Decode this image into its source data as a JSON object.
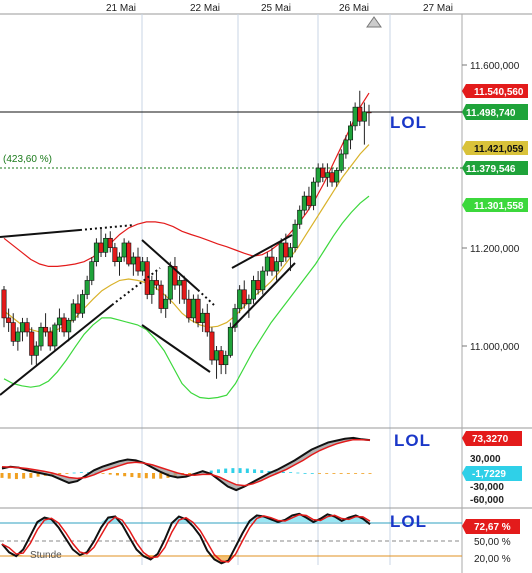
{
  "chart_data": [
    {
      "type": "candlestick",
      "x_labels": [
        "21 Mai",
        "22 Mai",
        "25 Mai",
        "26 Mai",
        "27 Mai"
      ],
      "y_ticks": [
        "11.600,000",
        "11.200,000",
        "11.000,000"
      ],
      "ylim": [
        10920,
        11680
      ],
      "price_badges": [
        {
          "label": "11.540,560",
          "value": 11540.56,
          "color": "#e31b1b",
          "text_color": "#ffffff"
        },
        {
          "label": "11.498,740",
          "value": 11498.74,
          "color": "#1fa33a",
          "text_color": "#ffffff"
        },
        {
          "label": "11.421,059",
          "value": 11421.06,
          "color": "#d9c23a",
          "text_color": "#111111"
        },
        {
          "label": "11.379,546",
          "value": 11379.55,
          "color": "#1fa33a",
          "text_color": "#ffffff"
        },
        {
          "label": "11.301,558",
          "value": 11301.56,
          "color": "#3cd83c",
          "text_color": "#ffffff"
        }
      ],
      "annotation": "(423,60 %)",
      "annotation_value": 11379.55,
      "horizontal_line_value": 11498.74,
      "text_label": "LOL",
      "candles_ohlc": [
        [
          11120,
          11128,
          11040,
          11060
        ],
        [
          11060,
          11080,
          11030,
          11050
        ],
        [
          11050,
          11070,
          11000,
          11010
        ],
        [
          11010,
          11040,
          10990,
          11030
        ],
        [
          11030,
          11060,
          11010,
          11050
        ],
        [
          11050,
          11060,
          11020,
          11030
        ],
        [
          11030,
          11040,
          10960,
          10980
        ],
        [
          10980,
          11010,
          10960,
          11000
        ],
        [
          11000,
          11050,
          10990,
          11040
        ],
        [
          11040,
          11070,
          11020,
          11030
        ],
        [
          11030,
          11040,
          10990,
          11000
        ],
        [
          11000,
          11050,
          10990,
          11045
        ],
        [
          11045,
          11080,
          11030,
          11060
        ],
        [
          11060,
          11070,
          11020,
          11030
        ],
        [
          11030,
          11060,
          11010,
          11055
        ],
        [
          11055,
          11100,
          11050,
          11090
        ],
        [
          11090,
          11110,
          11060,
          11070
        ],
        [
          11070,
          11120,
          11060,
          11110
        ],
        [
          11110,
          11150,
          11100,
          11140
        ],
        [
          11140,
          11190,
          11130,
          11180
        ],
        [
          11180,
          11230,
          11170,
          11220
        ],
        [
          11220,
          11250,
          11190,
          11200
        ],
        [
          11200,
          11240,
          11190,
          11230
        ],
        [
          11230,
          11245,
          11200,
          11210
        ],
        [
          11210,
          11220,
          11170,
          11180
        ],
        [
          11180,
          11200,
          11150,
          11190
        ],
        [
          11190,
          11230,
          11180,
          11220
        ],
        [
          11220,
          11225,
          11170,
          11175
        ],
        [
          11175,
          11200,
          11150,
          11190
        ],
        [
          11190,
          11210,
          11150,
          11160
        ],
        [
          11160,
          11190,
          11150,
          11180
        ],
        [
          11180,
          11190,
          11100,
          11110
        ],
        [
          11110,
          11150,
          11090,
          11140
        ],
        [
          11140,
          11160,
          11120,
          11130
        ],
        [
          11130,
          11140,
          11070,
          11080
        ],
        [
          11080,
          11110,
          11060,
          11100
        ],
        [
          11100,
          11180,
          11090,
          11170
        ],
        [
          11170,
          11190,
          11120,
          11130
        ],
        [
          11130,
          11150,
          11090,
          11140
        ],
        [
          11140,
          11150,
          11090,
          11100
        ],
        [
          11100,
          11120,
          11050,
          11060
        ],
        [
          11060,
          11110,
          11050,
          11100
        ],
        [
          11100,
          11110,
          11040,
          11050
        ],
        [
          11050,
          11080,
          11030,
          11070
        ],
        [
          11070,
          11090,
          11020,
          11030
        ],
        [
          11030,
          11040,
          10960,
          10970
        ],
        [
          10970,
          11000,
          10930,
          10990
        ],
        [
          10990,
          11000,
          10940,
          10960
        ],
        [
          10960,
          10990,
          10940,
          10980
        ],
        [
          10980,
          11050,
          10975,
          11040
        ],
        [
          11040,
          11090,
          11030,
          11080
        ],
        [
          11080,
          11130,
          11070,
          11120
        ],
        [
          11120,
          11140,
          11080,
          11090
        ],
        [
          11090,
          11110,
          11060,
          11100
        ],
        [
          11100,
          11150,
          11090,
          11140
        ],
        [
          11140,
          11160,
          11110,
          11120
        ],
        [
          11120,
          11170,
          11110,
          11160
        ],
        [
          11160,
          11200,
          11150,
          11190
        ],
        [
          11190,
          11210,
          11150,
          11160
        ],
        [
          11160,
          11190,
          11140,
          11180
        ],
        [
          11180,
          11230,
          11170,
          11220
        ],
        [
          11220,
          11240,
          11180,
          11190
        ],
        [
          11190,
          11220,
          11160,
          11210
        ],
        [
          11210,
          11270,
          11200,
          11260
        ],
        [
          11260,
          11300,
          11250,
          11290
        ],
        [
          11290,
          11330,
          11280,
          11320
        ],
        [
          11320,
          11340,
          11290,
          11300
        ],
        [
          11300,
          11360,
          11290,
          11350
        ],
        [
          11350,
          11390,
          11340,
          11380
        ],
        [
          11380,
          11390,
          11350,
          11360
        ],
        [
          11360,
          11390,
          11340,
          11370
        ],
        [
          11370,
          11380,
          11340,
          11350
        ],
        [
          11350,
          11380,
          11340,
          11375
        ],
        [
          11375,
          11420,
          11370,
          11410
        ],
        [
          11410,
          11450,
          11400,
          11440
        ],
        [
          11440,
          11480,
          11420,
          11470
        ],
        [
          11470,
          11520,
          11460,
          11510
        ],
        [
          11510,
          11545,
          11470,
          11480
        ],
        [
          11480,
          11520,
          11430,
          11500
        ],
        [
          11500,
          11515,
          11470,
          11499
        ]
      ],
      "bands": {
        "upper": [
          11230,
          11215,
          11200,
          11185,
          11175,
          11170,
          11170,
          11172,
          11175,
          11180,
          11190,
          11205,
          11220,
          11238,
          11252,
          11260,
          11265,
          11265,
          11262,
          11255,
          11245,
          11238,
          11232,
          11225,
          11218,
          11212,
          11205,
          11198,
          11192,
          11195,
          11205,
          11220,
          11238,
          11260,
          11285,
          11315,
          11350,
          11390,
          11430,
          11470,
          11510,
          11540
        ],
        "middle": [
          11075,
          11060,
          11045,
          11035,
          11030,
          11030,
          11035,
          11045,
          11060,
          11080,
          11100,
          11118,
          11130,
          11140,
          11143,
          11140,
          11135,
          11125,
          11110,
          11092,
          11070,
          11055,
          11045,
          11040,
          11042,
          11050,
          11065,
          11085,
          11105,
          11120,
          11138,
          11160,
          11185,
          11210,
          11240,
          11270,
          11300,
          11330,
          11360,
          11385,
          11410,
          11430
        ],
        "lower": [
          10930,
          10920,
          10915,
          10912,
          10915,
          10925,
          10945,
          10970,
          10998,
          11025,
          11045,
          11060,
          11060,
          11055,
          11050,
          11045,
          11035,
          11015,
          10990,
          10955,
          10920,
          10900,
          10890,
          10888,
          10890,
          10895,
          10920,
          10955,
          10990,
          11020,
          11050,
          11075,
          11100,
          11125,
          11150,
          11175,
          11205,
          11235,
          11262,
          11285,
          11305,
          11320
        ]
      },
      "trend_lines": [
        {
          "kind": "solid",
          "points": [
            [
              11000,
              11240
            ],
            [
              17,
              11250
            ]
          ]
        }
      ]
    },
    {
      "type": "macd",
      "y_ticks": [
        "30,000",
        "-30,000",
        "-60,000"
      ],
      "ylim": [
        -68,
        82
      ],
      "value_badges": [
        {
          "label": "73,3270",
          "value": 73.327,
          "color": "#e31b1b"
        },
        {
          "label": "-1,7229",
          "value": -1.7229,
          "color": "#2fd0e8"
        }
      ],
      "text_label": "LOL",
      "histogram": [
        -12,
        -14,
        -15,
        -14,
        -12,
        -9,
        -7,
        -5,
        -3,
        -1,
        1,
        2,
        2,
        1,
        -1,
        -4,
        -6,
        -8,
        -10,
        -12,
        -13,
        -14,
        -14,
        -12,
        -9,
        -6,
        -3,
        0,
        3,
        6,
        9,
        11,
        12,
        12,
        11,
        9,
        7,
        5,
        4,
        3,
        2,
        1,
        0,
        0,
        -1,
        -1,
        -1,
        -2,
        -2,
        -1,
        -1,
        -2
      ]
    },
    {
      "type": "oscillator",
      "y_ticks": [
        "50,00 %",
        "20,00 %"
      ],
      "ylim": [
        0,
        100
      ],
      "value_badges": [
        {
          "label": "72,67 %",
          "value": 72.67,
          "color": "#e31b1b"
        }
      ],
      "text_label": "LOL",
      "watermark": "Stunde"
    }
  ]
}
